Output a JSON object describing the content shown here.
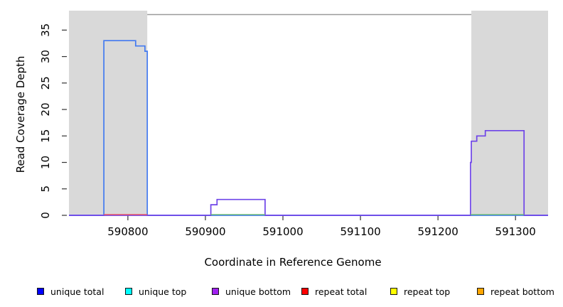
{
  "chart_data": {
    "type": "line",
    "title": "",
    "xlabel": "Coordinate in Reference Genome",
    "ylabel": "Read Coverage Depth",
    "xlim": [
      590724,
      591342
    ],
    "ylim": [
      0,
      38
    ],
    "x_ticks": [
      590800,
      590900,
      591000,
      591100,
      591200,
      591300
    ],
    "y_ticks": [
      0,
      5,
      10,
      15,
      20,
      25,
      30,
      35
    ],
    "grid": false,
    "background": "#ffffff",
    "tick_color": "#333333",
    "plot_box_top_color": "#999999",
    "highlight_regions": [
      {
        "name": "repeat-region-left",
        "x0": 590724,
        "x1": 590825,
        "color": "#d9d9d9"
      },
      {
        "name": "repeat-region-right",
        "x0": 591243,
        "x1": 591342,
        "color": "#d9d9d9"
      }
    ],
    "series": [
      {
        "id": "unique-total",
        "label": "unique total",
        "color": "#437af0",
        "width": 1.7,
        "pixel_dy": 0,
        "points": [
          [
            590724,
            0
          ],
          [
            590769,
            0
          ],
          [
            590769,
            33
          ],
          [
            590810,
            33
          ],
          [
            590810,
            32
          ],
          [
            590822,
            32
          ],
          [
            590822,
            31
          ],
          [
            590825,
            31
          ],
          [
            590825,
            0
          ],
          [
            591342,
            0
          ]
        ]
      },
      {
        "id": "unique-bottom",
        "label": "unique bottom",
        "color": "#6e44e8",
        "width": 1.7,
        "pixel_dy": 0,
        "points": [
          [
            590724,
            0
          ],
          [
            590907,
            0
          ],
          [
            590907,
            2
          ],
          [
            590915,
            2
          ],
          [
            590915,
            3
          ],
          [
            590977,
            3
          ],
          [
            590977,
            0
          ],
          [
            591242,
            0
          ],
          [
            591242,
            10
          ],
          [
            591243,
            10
          ],
          [
            591243,
            14
          ],
          [
            591250,
            14
          ],
          [
            591250,
            15
          ],
          [
            591261,
            15
          ],
          [
            591261,
            16
          ],
          [
            591311,
            16
          ],
          [
            591311,
            0
          ],
          [
            591342,
            0
          ]
        ]
      },
      {
        "id": "repeat-total-zero",
        "label": "repeat total",
        "color": "#ef5660",
        "width": 1.4,
        "pixel_dy": -1.1,
        "points": [
          [
            590769,
            0
          ],
          [
            590825,
            0
          ]
        ]
      },
      {
        "id": "top-strand-zero-mid",
        "label": "unique top / repeat top",
        "color": "#72c072",
        "width": 1.4,
        "pixel_dy": -1.1,
        "points": [
          [
            590907,
            0
          ],
          [
            590977,
            0
          ]
        ]
      },
      {
        "id": "top-strand-zero-right",
        "label": "unique top / repeat top",
        "color": "#72c072",
        "width": 1.4,
        "pixel_dy": -1.1,
        "points": [
          [
            591242,
            0
          ],
          [
            591311,
            0
          ]
        ]
      }
    ],
    "legend": {
      "position": "bottom",
      "entries": [
        {
          "label": "unique total",
          "color": "#0000ff"
        },
        {
          "label": "unique top",
          "color": "#00ffff"
        },
        {
          "label": "unique bottom",
          "color": "#a020f0"
        },
        {
          "label": "repeat total",
          "color": "#ff0000"
        },
        {
          "label": "repeat top",
          "color": "#ffff00"
        },
        {
          "label": "repeat bottom",
          "color": "#ffa500"
        }
      ]
    }
  }
}
